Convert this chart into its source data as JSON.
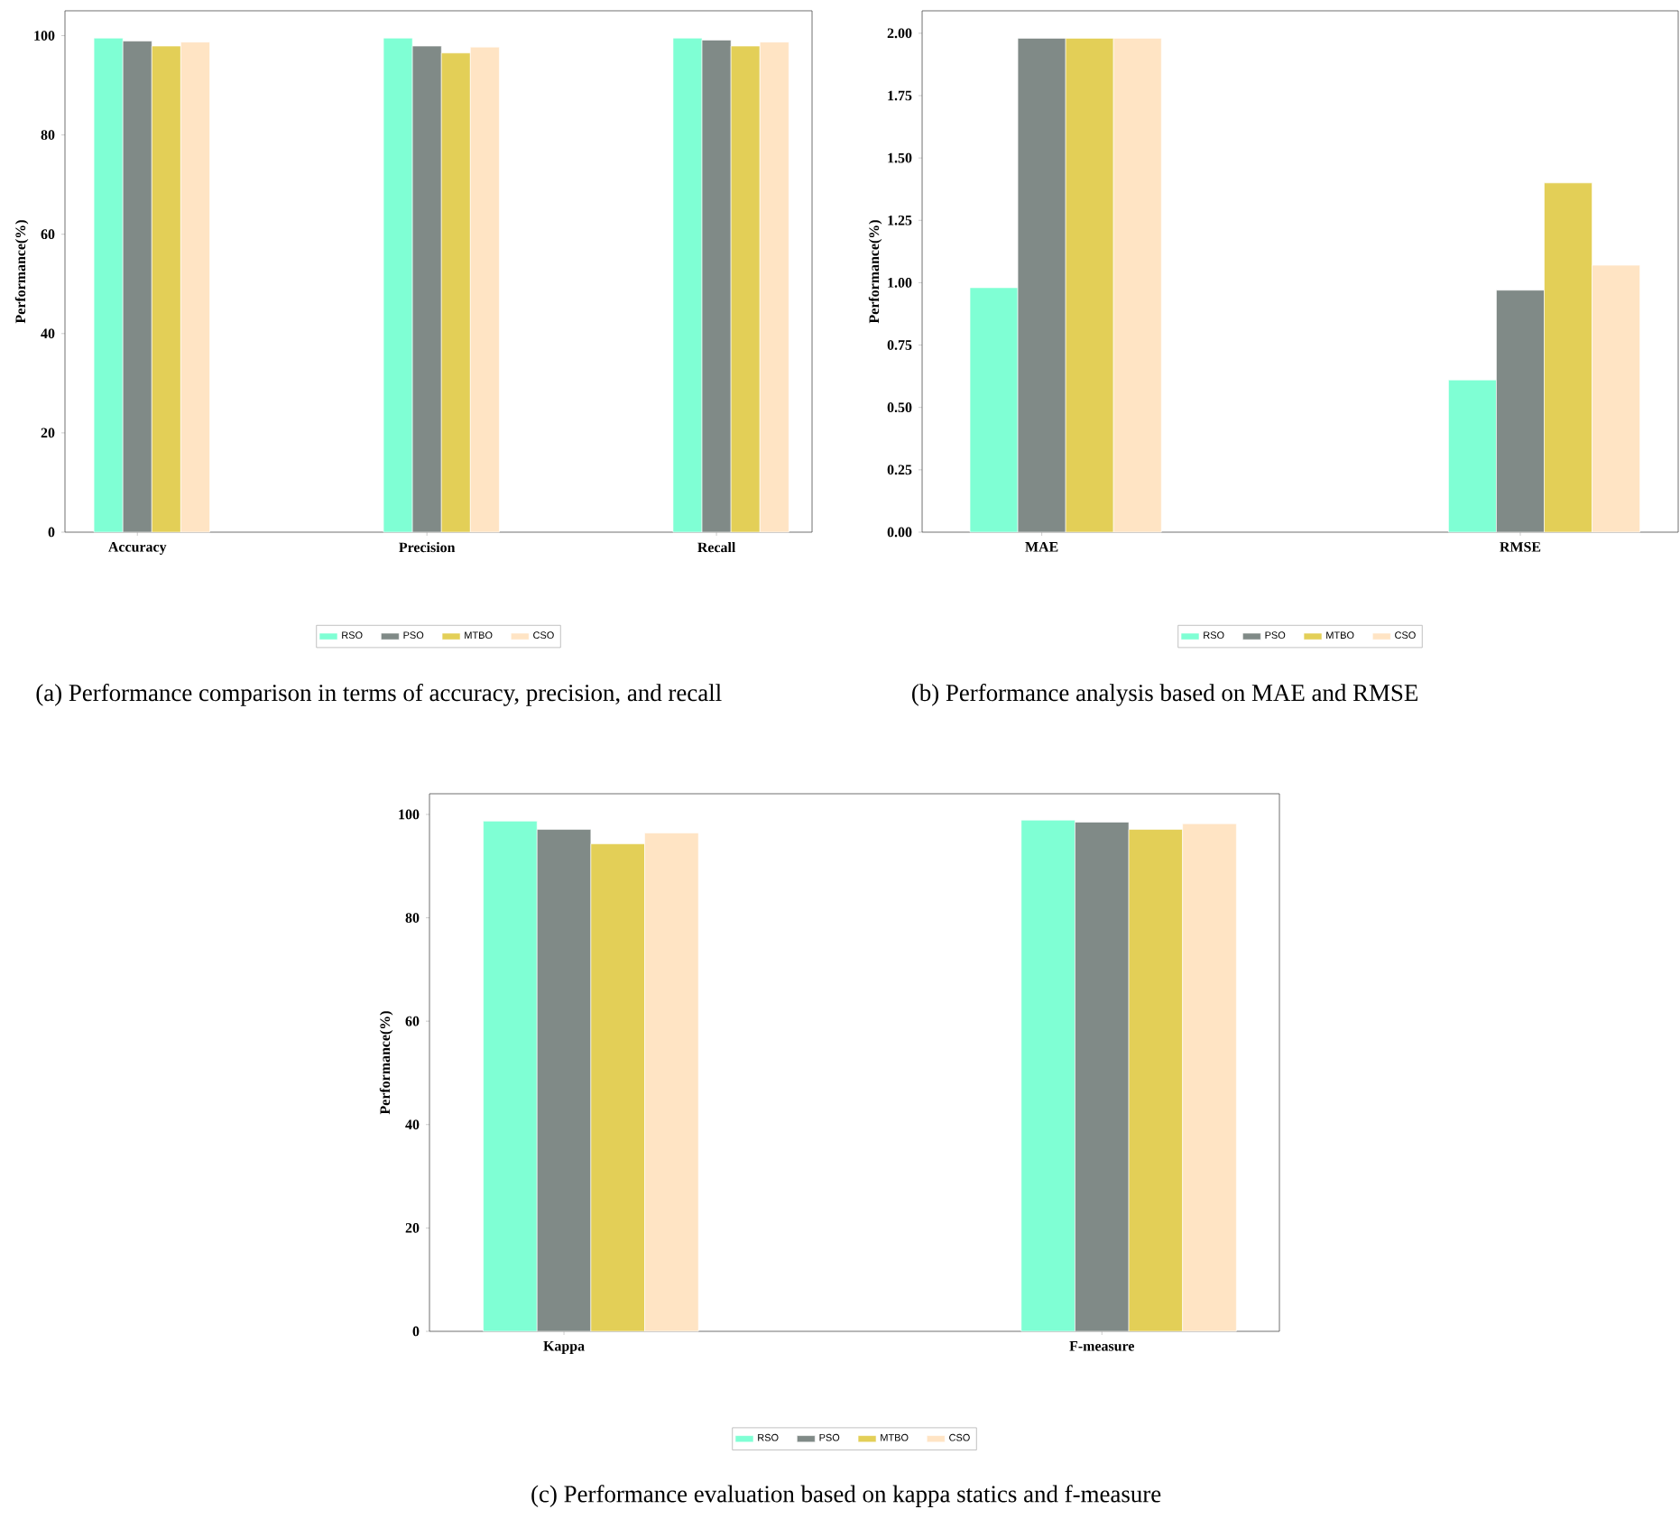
{
  "chart_data": [
    {
      "type": "bar",
      "categories": [
        "Accuracy",
        "Precision",
        "Recall"
      ],
      "ylabel": "Performance(%)",
      "ylim": [
        0,
        105
      ],
      "yticks": [
        0,
        20,
        40,
        60,
        80,
        100
      ],
      "legend": "bottom",
      "series": [
        {
          "name": "RSO",
          "color": "#7fffd4",
          "values": [
            99.5,
            99.5,
            99.5
          ]
        },
        {
          "name": "PSO",
          "color": "#808a87",
          "values": [
            98.9,
            97.9,
            99.1
          ]
        },
        {
          "name": "MTBO",
          "color": "#e3cf57",
          "values": [
            97.9,
            96.5,
            97.9
          ]
        },
        {
          "name": "CSO",
          "color": "#ffe4c4",
          "values": [
            98.7,
            97.7,
            98.7
          ]
        }
      ],
      "annotations": [
        "(a) Performance comparison in terms of accuracy, precision, and recall"
      ]
    },
    {
      "type": "bar",
      "categories": [
        "MAE",
        "RMSE"
      ],
      "ylabel": "Performance(%)",
      "ylim": [
        0,
        2.09
      ],
      "yticks": [
        {
          "value": 0,
          "label": "0.00"
        },
        {
          "value": 0.25,
          "label": "0.25"
        },
        {
          "value": 0.5,
          "label": "0.50"
        },
        {
          "value": 0.75,
          "label": "0.75"
        },
        {
          "value": 1,
          "label": "1.00"
        },
        {
          "value": 1.25,
          "label": "1.25"
        },
        {
          "value": 1.5,
          "label": "1.50"
        },
        {
          "value": 1.75,
          "label": "1.75"
        },
        {
          "value": 2,
          "label": "2.00"
        }
      ],
      "legend": "bottom",
      "series": [
        {
          "name": "RSO",
          "color": "#7fffd4",
          "values": [
            0.98,
            0.61
          ]
        },
        {
          "name": "PSO",
          "color": "#808a87",
          "values": [
            1.98,
            0.97
          ]
        },
        {
          "name": "MTBO",
          "color": "#e3cf57",
          "values": [
            1.98,
            1.4
          ]
        },
        {
          "name": "CSO",
          "color": "#ffe4c4",
          "values": [
            1.98,
            1.07
          ]
        }
      ],
      "annotations": [
        "(b) Performance analysis based on MAE and RMSE"
      ]
    },
    {
      "type": "bar",
      "categories": [
        "Kappa",
        "F-measure"
      ],
      "ylabel": "Performance(%)",
      "ylim": [
        0,
        104
      ],
      "yticks": [
        0,
        20,
        40,
        60,
        80,
        100
      ],
      "legend": "bottom",
      "series": [
        {
          "name": "RSO",
          "color": "#7fffd4",
          "values": [
            98.7,
            98.9
          ]
        },
        {
          "name": "PSO",
          "color": "#808a87",
          "values": [
            97.1,
            98.5
          ]
        },
        {
          "name": "MTBO",
          "color": "#e3cf57",
          "values": [
            94.3,
            97.1
          ]
        },
        {
          "name": "CSO",
          "color": "#ffe4c4",
          "values": [
            96.4,
            98.2
          ]
        }
      ],
      "annotations": [
        "(c) Performance evaluation based on kappa statics and f-measure"
      ]
    }
  ]
}
